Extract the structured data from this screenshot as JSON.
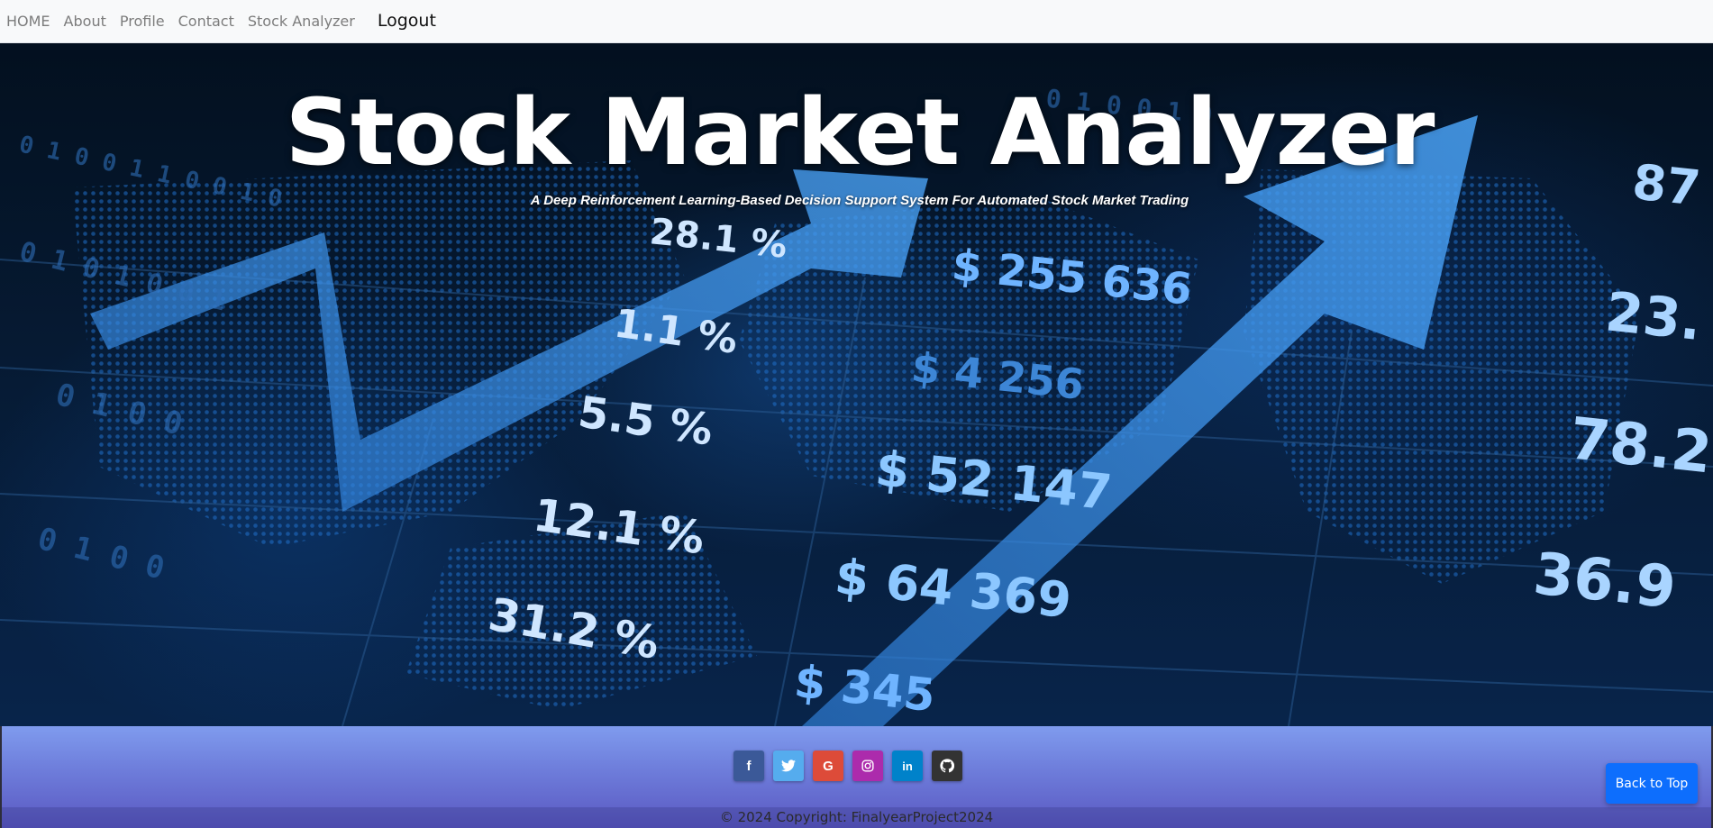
{
  "navbar": {
    "links": [
      {
        "label": "HOME"
      },
      {
        "label": "About"
      },
      {
        "label": "Profile"
      },
      {
        "label": "Contact"
      },
      {
        "label": "Stock Analyzer"
      }
    ],
    "logout_label": "Logout"
  },
  "hero": {
    "title": "Stock Market Analyzer",
    "subtitle": "A Deep Reinforcement Learning-Based Decision Support System For Automated Stock Market Trading",
    "background_figures": [
      "28.1 %",
      "1.1 %",
      "5.5 %",
      "12.1 %",
      "31.2 %",
      "$ 255 636",
      "$ 4 256",
      "$ 52 147",
      "$ 64 369",
      "$ 345",
      "87",
      "23.",
      "78.2",
      "36.9"
    ]
  },
  "footer": {
    "social": [
      {
        "name": "facebook",
        "icon": "facebook-icon",
        "color": "#3b5998",
        "glyph": "f"
      },
      {
        "name": "twitter",
        "icon": "twitter-icon",
        "color": "#55acee",
        "glyph": ""
      },
      {
        "name": "google",
        "icon": "google-icon",
        "color": "#dd4b39",
        "glyph": "G"
      },
      {
        "name": "instagram",
        "icon": "instagram-icon",
        "color": "#ac2bac",
        "glyph": ""
      },
      {
        "name": "linkedin",
        "icon": "linkedin-icon",
        "color": "#0082ca",
        "glyph": "in"
      },
      {
        "name": "github",
        "icon": "github-icon",
        "color": "#333333",
        "glyph": ""
      }
    ],
    "copyright": "© 2024 Copyright: FinalyearProject2024"
  },
  "back_to_top_label": "Back to Top",
  "colors": {
    "navbar_bg": "#f8f9fa",
    "footer_gradient_top": "#7f9bee",
    "footer_gradient_bottom": "#5a58c2",
    "back_to_top_bg": "#0d6efd",
    "hero_arrow": "#3a8ee6"
  }
}
